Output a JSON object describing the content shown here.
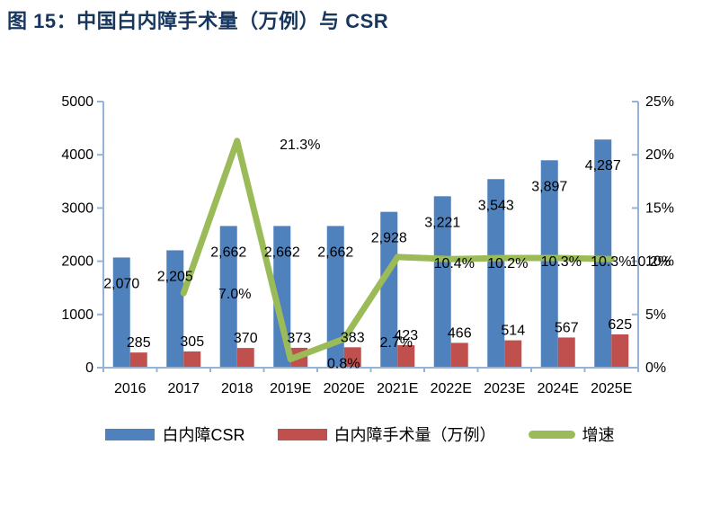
{
  "figure": {
    "title": "图 15：中国白内障手术量（万例）与 CSR",
    "title_color": "#17365D"
  },
  "chart_data": {
    "type": "combo-bar-line",
    "title": "中国白内障手术量（万例）与 CSR",
    "categories": [
      "2016",
      "2017",
      "2018",
      "2019E",
      "2020E",
      "2021E",
      "2022E",
      "2023E",
      "2024E",
      "2025E"
    ],
    "series": [
      {
        "name": "白内障CSR",
        "type": "bar",
        "axis": "left",
        "color": "#4F81BD",
        "values": [
          2070,
          2205,
          2662,
          2662,
          2662,
          2928,
          3221,
          3543,
          3897,
          4287
        ],
        "labels": [
          "2,070",
          "2,205",
          "2,662",
          "2,662",
          "2,662",
          "2,928",
          "3,221",
          "3,543",
          "3,897",
          "4,287"
        ]
      },
      {
        "name": "白内障手术量（万例）",
        "type": "bar",
        "axis": "left",
        "color": "#C0504D",
        "values": [
          285,
          305,
          370,
          373,
          383,
          423,
          466,
          514,
          567,
          625
        ],
        "labels": [
          "285",
          "305",
          "370",
          "373",
          "383",
          "423",
          "466",
          "514",
          "567",
          "625"
        ]
      },
      {
        "name": "增速",
        "type": "line",
        "axis": "right",
        "color": "#9BBB59",
        "values": [
          null,
          7.0,
          21.3,
          0.8,
          2.7,
          10.4,
          10.2,
          10.3,
          10.3,
          10.2
        ],
        "labels": [
          null,
          "7.0%",
          "21.3%",
          "0.8%",
          "2.7%",
          "10.4%",
          "10.2%",
          "10.3%",
          "10.3%",
          "10.2%"
        ]
      }
    ],
    "left_axis": {
      "min": 0,
      "max": 5000,
      "ticks": [
        "0",
        "1000",
        "2000",
        "3000",
        "4000",
        "5000"
      ]
    },
    "right_axis": {
      "min": 0,
      "max": 25,
      "ticks": [
        "0%",
        "5%",
        "10%",
        "15%",
        "20%",
        "25%"
      ]
    },
    "axis_color": "#95B3D7",
    "label_color": "#000000",
    "grid": false,
    "legend_position": "bottom"
  },
  "legend": {
    "items": [
      {
        "label": "白内障CSR",
        "color": "#4F81BD",
        "kind": "bar"
      },
      {
        "label": "白内障手术量（万例）",
        "color": "#C0504D",
        "kind": "bar"
      },
      {
        "label": "增速",
        "color": "#9BBB59",
        "kind": "line"
      }
    ]
  }
}
